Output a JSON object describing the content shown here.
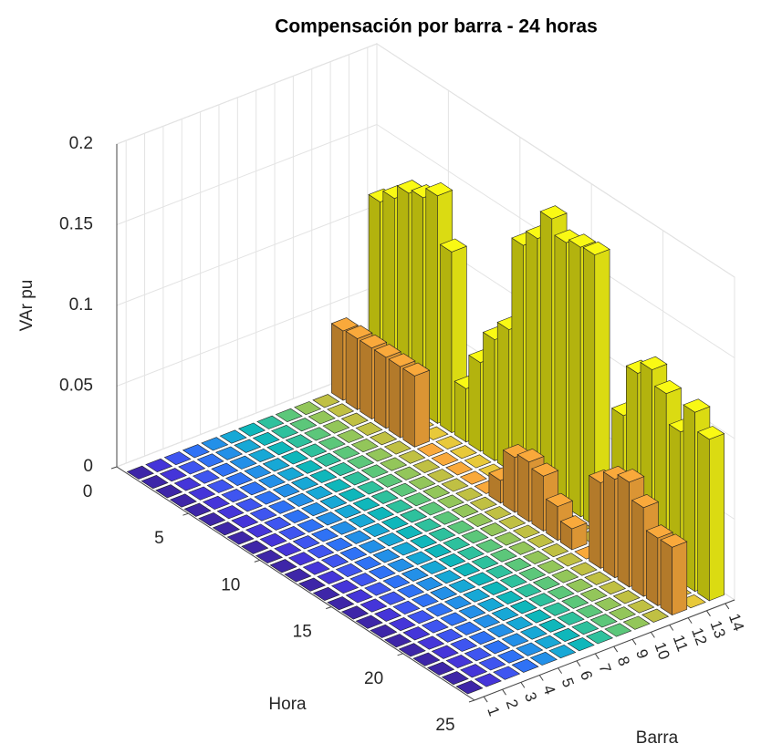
{
  "chart_data": {
    "type": "bar3",
    "title": "Compensación por barra - 24 horas",
    "xlabel": "Barra",
    "ylabel": "Hora",
    "zlabel": "VAr pu",
    "categories": [
      1,
      2,
      3,
      4,
      5,
      6,
      7,
      8,
      9,
      10,
      11,
      12,
      13,
      14
    ],
    "y": [
      1,
      2,
      3,
      4,
      5,
      6,
      7,
      8,
      9,
      10,
      11,
      12,
      13,
      14,
      15,
      16,
      17,
      18,
      19,
      20,
      21,
      22,
      23,
      24
    ],
    "ylim": [
      0,
      25
    ],
    "yticks": [
      0,
      5,
      10,
      15,
      20,
      25
    ],
    "zlim": [
      0,
      0.2
    ],
    "zticks": [
      0,
      0.05,
      0.1,
      0.15,
      0.2
    ],
    "grid": true,
    "colors": [
      "#3e26a8",
      "#4535d9",
      "#3f55f0",
      "#2f72f5",
      "#2390e8",
      "#17a8d6",
      "#0fb7bb",
      "#2ec19d",
      "#5cc77a",
      "#93c65a",
      "#c0c043",
      "#f9a93b",
      "#e8c93a",
      "#f9f914"
    ],
    "values": [
      [
        0,
        0,
        0,
        0,
        0,
        0,
        0,
        0,
        0,
        0,
        0,
        0,
        0,
        0,
        0,
        0,
        0,
        0,
        0,
        0,
        0,
        0,
        0,
        0
      ],
      [
        0,
        0,
        0,
        0,
        0,
        0,
        0,
        0,
        0,
        0,
        0,
        0,
        0,
        0,
        0,
        0,
        0,
        0,
        0,
        0,
        0,
        0,
        0,
        0
      ],
      [
        0,
        0,
        0,
        0,
        0,
        0,
        0,
        0,
        0,
        0,
        0,
        0,
        0,
        0,
        0,
        0,
        0,
        0,
        0,
        0,
        0,
        0,
        0,
        0
      ],
      [
        0,
        0,
        0,
        0,
        0,
        0,
        0,
        0,
        0,
        0,
        0,
        0,
        0,
        0,
        0,
        0,
        0,
        0,
        0,
        0,
        0,
        0,
        0,
        0
      ],
      [
        0,
        0,
        0,
        0,
        0,
        0,
        0,
        0,
        0,
        0,
        0,
        0,
        0,
        0,
        0,
        0,
        0,
        0,
        0,
        0,
        0,
        0,
        0,
        0
      ],
      [
        0,
        0,
        0,
        0,
        0,
        0,
        0,
        0,
        0,
        0,
        0,
        0,
        0,
        0,
        0,
        0,
        0,
        0,
        0,
        0,
        0,
        0,
        0,
        0
      ],
      [
        0,
        0,
        0,
        0,
        0,
        0,
        0,
        0,
        0,
        0,
        0,
        0,
        0,
        0,
        0,
        0,
        0,
        0,
        0,
        0,
        0,
        0,
        0,
        0
      ],
      [
        0,
        0,
        0,
        0,
        0,
        0,
        0,
        0,
        0,
        0,
        0,
        0,
        0,
        0,
        0,
        0,
        0,
        0,
        0,
        0,
        0,
        0,
        0,
        0
      ],
      [
        0,
        0,
        0,
        0,
        0,
        0,
        0,
        0,
        0,
        0,
        0,
        0,
        0,
        0,
        0,
        0,
        0,
        0,
        0,
        0,
        0,
        0,
        0,
        0
      ],
      [
        0,
        0,
        0,
        0,
        0,
        0,
        0,
        0,
        0,
        0,
        0,
        0,
        0,
        0,
        0,
        0,
        0,
        0,
        0,
        0,
        0,
        0,
        0,
        0
      ],
      [
        0,
        0,
        0,
        0,
        0,
        0,
        0,
        0,
        0,
        0,
        0,
        0,
        0,
        0,
        0,
        0,
        0,
        0,
        0,
        0,
        0,
        0,
        0,
        0
      ],
      [
        0.043,
        0.044,
        0.044,
        0.044,
        0.044,
        0.044,
        0,
        0,
        0,
        0,
        0,
        0.014,
        0.034,
        0.037,
        0.034,
        0.021,
        0.013,
        0,
        0.053,
        0.061,
        0.065,
        0.055,
        0.042,
        0.042
      ],
      [
        0,
        0,
        0,
        0,
        0,
        0,
        0,
        0,
        0,
        0,
        0,
        0,
        0,
        0,
        0,
        0,
        0,
        0,
        0,
        0,
        0,
        0,
        0,
        0
      ],
      [
        0.114,
        0.122,
        0.131,
        0.134,
        0.141,
        0.112,
        0.033,
        0.055,
        0.075,
        0.087,
        0.145,
        0.155,
        0.173,
        0.164,
        0.167,
        0.168,
        0,
        0.08,
        0.112,
        0.12,
        0.111,
        0.093,
        0.111,
        0.1
      ]
    ]
  }
}
